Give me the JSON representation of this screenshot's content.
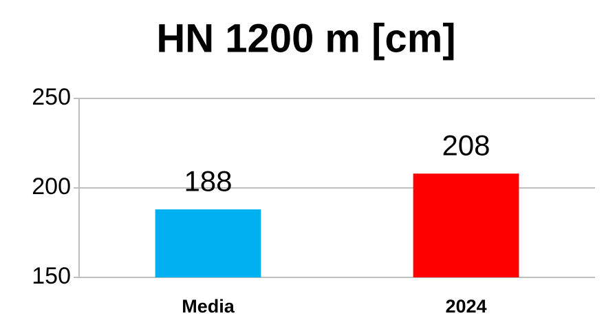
{
  "chart_data": {
    "type": "bar",
    "title": "HN 1200 m [cm]",
    "categories": [
      "Media",
      "2024"
    ],
    "values": [
      188,
      208
    ],
    "colors": [
      "#00b0f0",
      "#ff0000"
    ],
    "ylim": [
      150,
      250
    ],
    "yticks": [
      150,
      200,
      250
    ],
    "grid": true
  }
}
